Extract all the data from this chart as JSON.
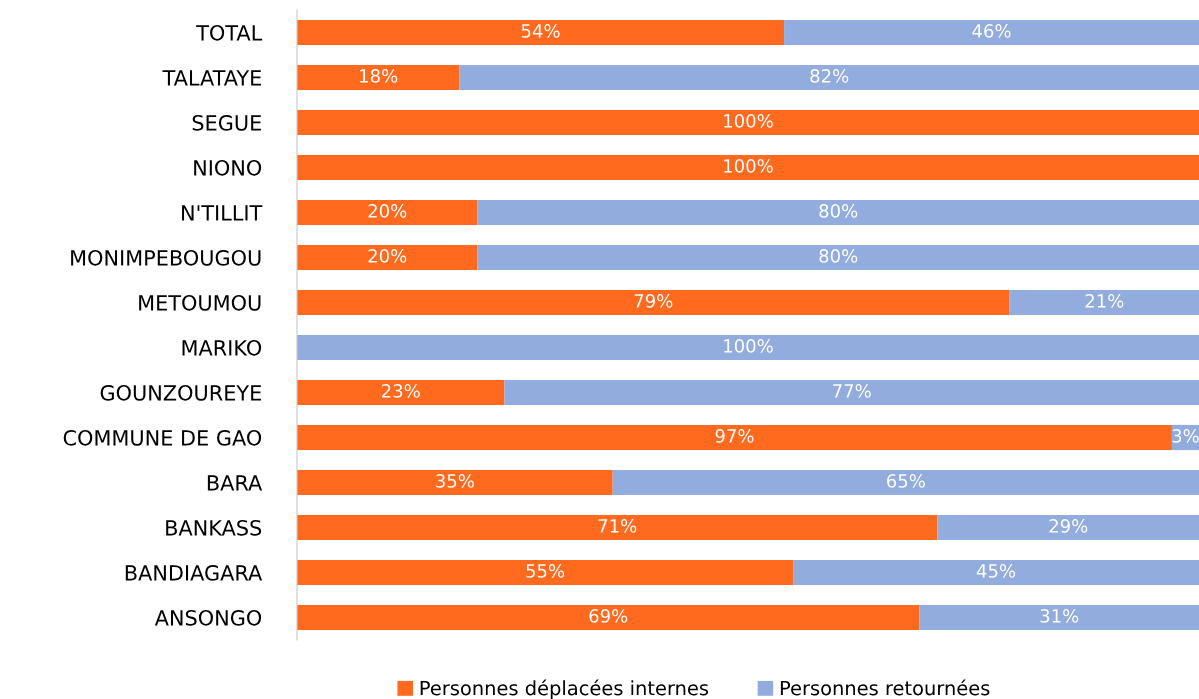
{
  "chart_data": {
    "type": "bar",
    "orientation": "horizontal",
    "stacked": true,
    "categories": [
      "TOTAL",
      "TALATAYE",
      "SEGUE",
      "NIONO",
      "N'TILLIT",
      "MONIMPEBOUGOU",
      "METOUMOU",
      "MARIKO",
      "GOUNZOUREYE",
      "COMMUNE DE GAO",
      "BARA",
      "BANKASS",
      "BANDIAGARA",
      "ANSONGO"
    ],
    "series": [
      {
        "name": "Personnes déplacées internes",
        "color": "#ff6a1f",
        "values": [
          54,
          18,
          100,
          100,
          20,
          20,
          79,
          0,
          23,
          97,
          35,
          71,
          55,
          69
        ],
        "value_labels": [
          "54%",
          "18%",
          "100%",
          "100%",
          "20%",
          "20%",
          "79%",
          null,
          "23%",
          "97%",
          "35%",
          "71%",
          "55%",
          "69%"
        ]
      },
      {
        "name": "Personnes retournées",
        "color": "#91acdd",
        "values": [
          46,
          82,
          0,
          0,
          80,
          80,
          21,
          100,
          77,
          3,
          65,
          29,
          45,
          31
        ],
        "value_labels": [
          "46%",
          "82%",
          null,
          null,
          "80%",
          "80%",
          "21%",
          "100%",
          "77%",
          "3%",
          "65%",
          "29%",
          "45%",
          "31%"
        ]
      }
    ],
    "xlim": [
      0,
      100
    ],
    "tick_labels": "y",
    "legend": "bottom",
    "grid": false
  }
}
